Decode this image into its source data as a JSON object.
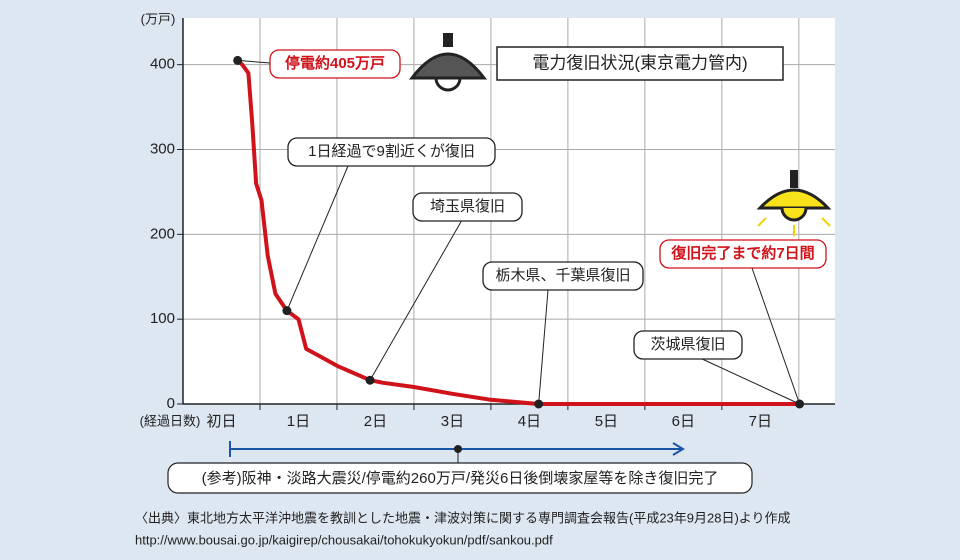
{
  "chart_data": {
    "type": "line",
    "title": "電力復旧状況(東京電力管内)",
    "y_unit": "(万戸)",
    "x_label": "(経過日数)",
    "x": [
      0.71,
      0.77,
      0.85,
      0.9,
      0.95,
      1.02,
      1.1,
      1.2,
      1.35,
      1.5,
      1.6,
      1.8,
      2.0,
      2.43,
      2.6,
      3.0,
      3.5,
      4.0,
      4.62,
      8.01
    ],
    "values": [
      405,
      400,
      390,
      330,
      260,
      240,
      175,
      130,
      110,
      100,
      65,
      55,
      45,
      28,
      25,
      20,
      12,
      5,
      0,
      0
    ],
    "color": "#d0121b",
    "xlim": [
      0,
      8.47
    ],
    "xticks": [
      {
        "value": 0.5,
        "label": "初日"
      },
      {
        "value": 1.5,
        "label": "1日"
      },
      {
        "value": 2.5,
        "label": "2日"
      },
      {
        "value": 3.5,
        "label": "3日"
      },
      {
        "value": 4.5,
        "label": "4日"
      },
      {
        "value": 5.5,
        "label": "5日"
      },
      {
        "value": 6.5,
        "label": "6日"
      },
      {
        "value": 7.5,
        "label": "7日"
      }
    ],
    "ylim": [
      0,
      455
    ],
    "yticks": [
      0,
      100,
      200,
      300,
      400
    ],
    "grid": true,
    "annotations": [
      "停電約405万戸",
      "1日経過で9割近くが復旧",
      "埼玉県復旧",
      "栃木県、千葉県復旧",
      "復旧完了まで約7日間",
      "茨城県復旧"
    ],
    "note": "(参考)阪神・淡路大震災/停電約260万戸/発災6日後倒壊家屋等を除き復旧完了",
    "source": "〈出典〉東北地方太平洋沖地震を教訓とした地震・津波対策に関する専門調査会報告(平成23年9月28日)より作成",
    "source_url": "http://www.bousai.go.jp/kaigirep/chousakai/tohokukyokun/pdf/sankou.pdf"
  }
}
